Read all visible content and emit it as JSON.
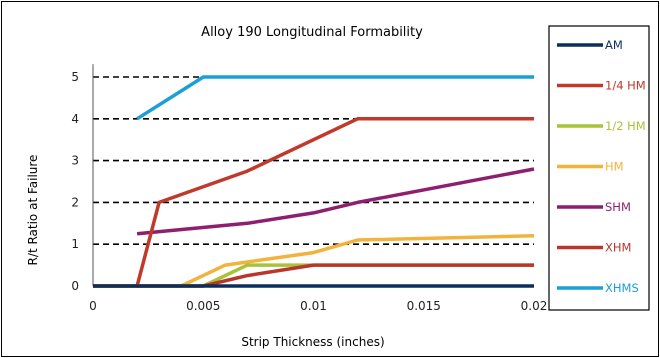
{
  "chart_data": {
    "type": "line",
    "title": "Alloy 190 Longitudinal Formability",
    "xlabel": "Strip Thickness (inches)",
    "ylabel": "R/t Ratio at Failure",
    "xlim": [
      0,
      0.02
    ],
    "ylim": [
      0,
      5.5
    ],
    "x_ticks": [
      "0",
      "0.005",
      "0.01",
      "0.015",
      "0.02"
    ],
    "y_ticks": [
      "0",
      "1",
      "2",
      "3",
      "4",
      "5"
    ],
    "y_gridlines": [
      1,
      2,
      3,
      4,
      5
    ],
    "grid": "horizontal dashed",
    "legend_position": "right",
    "series": [
      {
        "name": "AM",
        "color": "#0b2f5c",
        "x": [
          0,
          0.02
        ],
        "y": [
          0,
          0
        ]
      },
      {
        "name": "1/4 HM",
        "color": "#c0392b",
        "x": [
          0,
          0.002,
          0.003,
          0.007,
          0.012,
          0.02
        ],
        "y": [
          0,
          0,
          2,
          2.75,
          4,
          4
        ]
      },
      {
        "name": "1/2 HM",
        "color": "#a8c23a",
        "x": [
          0,
          0.005,
          0.007,
          0.01,
          0.02
        ],
        "y": [
          0,
          0,
          0.5,
          0.5,
          0.5
        ]
      },
      {
        "name": "HM",
        "color": "#f2b33d",
        "x": [
          0,
          0.004,
          0.006,
          0.01,
          0.012,
          0.02
        ],
        "y": [
          0,
          0,
          0.5,
          0.8,
          1.1,
          1.2
        ]
      },
      {
        "name": "SHM",
        "color": "#8e1f6f",
        "x": [
          0.002,
          0.007,
          0.01,
          0.012,
          0.02
        ],
        "y": [
          1.25,
          1.5,
          1.75,
          2,
          2.8
        ]
      },
      {
        "name": "XHM",
        "color": "#b9372a",
        "x": [
          0,
          0.005,
          0.007,
          0.01,
          0.02
        ],
        "y": [
          0,
          0,
          0.25,
          0.5,
          0.5
        ]
      },
      {
        "name": "XHMS",
        "color": "#1a9fd9",
        "x": [
          0.002,
          0.005,
          0.02
        ],
        "y": [
          4,
          5,
          5
        ]
      }
    ]
  }
}
